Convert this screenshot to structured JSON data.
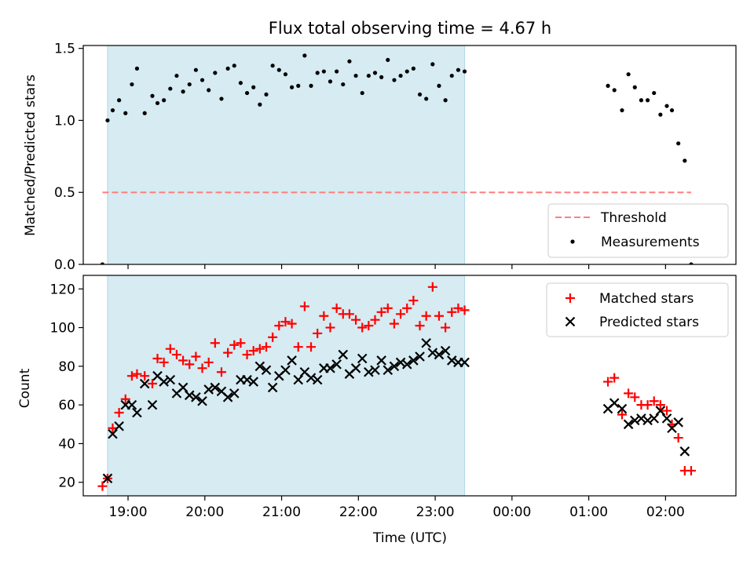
{
  "chart_data": [
    {
      "type": "scatter",
      "title": "Flux total observing time = 4.67 h",
      "xlabel": "",
      "ylabel": "Matched/Predicted stars",
      "xlim": [
        "18:25",
        "02:55"
      ],
      "ylim": [
        0,
        1.52
      ],
      "x_ticks": [
        "19:00",
        "20:00",
        "21:00",
        "22:00",
        "23:00",
        "00:00",
        "01:00",
        "02:00"
      ],
      "y_ticks": [
        "0.0",
        "0.5",
        "1.0",
        "1.5"
      ],
      "shaded_span": {
        "start": "18:44",
        "end": "23:23",
        "color": "#add8e6"
      },
      "threshold": {
        "name": "Threshold",
        "y": 0.5,
        "x_start": "18:40",
        "x_end": "02:20",
        "color": "#ff7f7f"
      },
      "legend_loc": "lower right",
      "series": [
        {
          "name": "Measurements",
          "marker": "dot",
          "color": "#000000",
          "points": [
            {
              "x": "18:40",
              "y": 0.0
            },
            {
              "x": "18:44",
              "y": 1.0
            },
            {
              "x": "18:48",
              "y": 1.07
            },
            {
              "x": "18:53",
              "y": 1.14
            },
            {
              "x": "18:58",
              "y": 1.05
            },
            {
              "x": "19:03",
              "y": 1.25
            },
            {
              "x": "19:07",
              "y": 1.36
            },
            {
              "x": "19:13",
              "y": 1.05
            },
            {
              "x": "19:19",
              "y": 1.17
            },
            {
              "x": "19:23",
              "y": 1.12
            },
            {
              "x": "19:28",
              "y": 1.14
            },
            {
              "x": "19:33",
              "y": 1.22
            },
            {
              "x": "19:38",
              "y": 1.31
            },
            {
              "x": "19:43",
              "y": 1.2
            },
            {
              "x": "19:48",
              "y": 1.25
            },
            {
              "x": "19:53",
              "y": 1.35
            },
            {
              "x": "19:58",
              "y": 1.28
            },
            {
              "x": "20:03",
              "y": 1.21
            },
            {
              "x": "20:08",
              "y": 1.33
            },
            {
              "x": "20:13",
              "y": 1.15
            },
            {
              "x": "20:18",
              "y": 1.36
            },
            {
              "x": "20:23",
              "y": 1.38
            },
            {
              "x": "20:28",
              "y": 1.26
            },
            {
              "x": "20:33",
              "y": 1.19
            },
            {
              "x": "20:38",
              "y": 1.23
            },
            {
              "x": "20:43",
              "y": 1.11
            },
            {
              "x": "20:48",
              "y": 1.18
            },
            {
              "x": "20:53",
              "y": 1.38
            },
            {
              "x": "20:58",
              "y": 1.35
            },
            {
              "x": "21:03",
              "y": 1.32
            },
            {
              "x": "21:08",
              "y": 1.23
            },
            {
              "x": "21:13",
              "y": 1.24
            },
            {
              "x": "21:18",
              "y": 1.45
            },
            {
              "x": "21:23",
              "y": 1.24
            },
            {
              "x": "21:28",
              "y": 1.33
            },
            {
              "x": "21:33",
              "y": 1.34
            },
            {
              "x": "21:38",
              "y": 1.27
            },
            {
              "x": "21:43",
              "y": 1.34
            },
            {
              "x": "21:48",
              "y": 1.25
            },
            {
              "x": "21:53",
              "y": 1.41
            },
            {
              "x": "21:58",
              "y": 1.31
            },
            {
              "x": "22:03",
              "y": 1.19
            },
            {
              "x": "22:08",
              "y": 1.31
            },
            {
              "x": "22:13",
              "y": 1.33
            },
            {
              "x": "22:18",
              "y": 1.3
            },
            {
              "x": "22:23",
              "y": 1.42
            },
            {
              "x": "22:28",
              "y": 1.28
            },
            {
              "x": "22:33",
              "y": 1.31
            },
            {
              "x": "22:38",
              "y": 1.34
            },
            {
              "x": "22:43",
              "y": 1.36
            },
            {
              "x": "22:48",
              "y": 1.18
            },
            {
              "x": "22:53",
              "y": 1.15
            },
            {
              "x": "22:58",
              "y": 1.39
            },
            {
              "x": "23:03",
              "y": 1.24
            },
            {
              "x": "23:08",
              "y": 1.14
            },
            {
              "x": "23:13",
              "y": 1.31
            },
            {
              "x": "23:18",
              "y": 1.35
            },
            {
              "x": "23:23",
              "y": 1.34
            },
            {
              "x": "01:15",
              "y": 1.24
            },
            {
              "x": "01:20",
              "y": 1.21
            },
            {
              "x": "01:26",
              "y": 1.07
            },
            {
              "x": "01:31",
              "y": 1.32
            },
            {
              "x": "01:36",
              "y": 1.23
            },
            {
              "x": "01:41",
              "y": 1.14
            },
            {
              "x": "01:46",
              "y": 1.14
            },
            {
              "x": "01:51",
              "y": 1.19
            },
            {
              "x": "01:56",
              "y": 1.04
            },
            {
              "x": "02:01",
              "y": 1.1
            },
            {
              "x": "02:05",
              "y": 1.07
            },
            {
              "x": "02:10",
              "y": 0.84
            },
            {
              "x": "02:15",
              "y": 0.72
            },
            {
              "x": "02:20",
              "y": 0.0
            }
          ]
        }
      ]
    },
    {
      "type": "scatter",
      "title": "",
      "xlabel": "Time (UTC)",
      "ylabel": "Count",
      "xlim": [
        "18:25",
        "02:55"
      ],
      "ylim": [
        13,
        127
      ],
      "x_ticks": [
        "19:00",
        "20:00",
        "21:00",
        "22:00",
        "23:00",
        "00:00",
        "01:00",
        "02:00"
      ],
      "y_ticks": [
        "20",
        "40",
        "60",
        "80",
        "100",
        "120"
      ],
      "shaded_span": {
        "start": "18:44",
        "end": "23:23",
        "color": "#add8e6"
      },
      "legend_loc": "upper right",
      "series": [
        {
          "name": "Matched stars",
          "marker": "plus",
          "color": "#ff0000",
          "points": [
            {
              "x": "18:40",
              "y": 18
            },
            {
              "x": "18:44",
              "y": 22
            },
            {
              "x": "18:48",
              "y": 48
            },
            {
              "x": "18:53",
              "y": 56
            },
            {
              "x": "18:58",
              "y": 63
            },
            {
              "x": "19:03",
              "y": 75
            },
            {
              "x": "19:07",
              "y": 76
            },
            {
              "x": "19:13",
              "y": 75
            },
            {
              "x": "19:19",
              "y": 71
            },
            {
              "x": "19:23",
              "y": 84
            },
            {
              "x": "19:28",
              "y": 82
            },
            {
              "x": "19:33",
              "y": 89
            },
            {
              "x": "19:38",
              "y": 86
            },
            {
              "x": "19:43",
              "y": 83
            },
            {
              "x": "19:48",
              "y": 81
            },
            {
              "x": "19:53",
              "y": 85
            },
            {
              "x": "19:58",
              "y": 79
            },
            {
              "x": "20:03",
              "y": 82
            },
            {
              "x": "20:08",
              "y": 92
            },
            {
              "x": "20:13",
              "y": 77
            },
            {
              "x": "20:18",
              "y": 87
            },
            {
              "x": "20:23",
              "y": 91
            },
            {
              "x": "20:28",
              "y": 92
            },
            {
              "x": "20:33",
              "y": 86
            },
            {
              "x": "20:38",
              "y": 88
            },
            {
              "x": "20:43",
              "y": 89
            },
            {
              "x": "20:48",
              "y": 90
            },
            {
              "x": "20:53",
              "y": 95
            },
            {
              "x": "20:58",
              "y": 101
            },
            {
              "x": "21:03",
              "y": 103
            },
            {
              "x": "21:08",
              "y": 102
            },
            {
              "x": "21:13",
              "y": 90
            },
            {
              "x": "21:18",
              "y": 111
            },
            {
              "x": "21:23",
              "y": 90
            },
            {
              "x": "21:28",
              "y": 97
            },
            {
              "x": "21:33",
              "y": 106
            },
            {
              "x": "21:38",
              "y": 100
            },
            {
              "x": "21:43",
              "y": 110
            },
            {
              "x": "21:48",
              "y": 107
            },
            {
              "x": "21:53",
              "y": 107
            },
            {
              "x": "21:58",
              "y": 104
            },
            {
              "x": "22:03",
              "y": 100
            },
            {
              "x": "22:08",
              "y": 101
            },
            {
              "x": "22:13",
              "y": 104
            },
            {
              "x": "22:18",
              "y": 108
            },
            {
              "x": "22:23",
              "y": 110
            },
            {
              "x": "22:28",
              "y": 102
            },
            {
              "x": "22:33",
              "y": 107
            },
            {
              "x": "22:38",
              "y": 110
            },
            {
              "x": "22:43",
              "y": 114
            },
            {
              "x": "22:48",
              "y": 101
            },
            {
              "x": "22:53",
              "y": 106
            },
            {
              "x": "22:58",
              "y": 121
            },
            {
              "x": "23:03",
              "y": 106
            },
            {
              "x": "23:08",
              "y": 100
            },
            {
              "x": "23:13",
              "y": 108
            },
            {
              "x": "23:18",
              "y": 110
            },
            {
              "x": "23:23",
              "y": 109
            },
            {
              "x": "01:15",
              "y": 72
            },
            {
              "x": "01:20",
              "y": 74
            },
            {
              "x": "01:26",
              "y": 55
            },
            {
              "x": "01:31",
              "y": 66
            },
            {
              "x": "01:36",
              "y": 64
            },
            {
              "x": "01:41",
              "y": 60
            },
            {
              "x": "01:46",
              "y": 60
            },
            {
              "x": "01:51",
              "y": 62
            },
            {
              "x": "01:56",
              "y": 60
            },
            {
              "x": "02:01",
              "y": 57
            },
            {
              "x": "02:05",
              "y": 50
            },
            {
              "x": "02:10",
              "y": 43
            },
            {
              "x": "02:15",
              "y": 26
            },
            {
              "x": "02:20",
              "y": 26
            }
          ]
        },
        {
          "name": "Predicted stars",
          "marker": "x",
          "color": "#000000",
          "points": [
            {
              "x": "18:44",
              "y": 22
            },
            {
              "x": "18:48",
              "y": 45
            },
            {
              "x": "18:53",
              "y": 49
            },
            {
              "x": "18:58",
              "y": 60
            },
            {
              "x": "19:03",
              "y": 60
            },
            {
              "x": "19:07",
              "y": 56
            },
            {
              "x": "19:13",
              "y": 71
            },
            {
              "x": "19:19",
              "y": 60
            },
            {
              "x": "19:23",
              "y": 75
            },
            {
              "x": "19:28",
              "y": 72
            },
            {
              "x": "19:33",
              "y": 73
            },
            {
              "x": "19:38",
              "y": 66
            },
            {
              "x": "19:43",
              "y": 69
            },
            {
              "x": "19:48",
              "y": 65
            },
            {
              "x": "19:53",
              "y": 64
            },
            {
              "x": "19:58",
              "y": 62
            },
            {
              "x": "20:03",
              "y": 68
            },
            {
              "x": "20:08",
              "y": 69
            },
            {
              "x": "20:13",
              "y": 67
            },
            {
              "x": "20:18",
              "y": 64
            },
            {
              "x": "20:23",
              "y": 66
            },
            {
              "x": "20:28",
              "y": 73
            },
            {
              "x": "20:33",
              "y": 73
            },
            {
              "x": "20:38",
              "y": 72
            },
            {
              "x": "20:43",
              "y": 80
            },
            {
              "x": "20:48",
              "y": 78
            },
            {
              "x": "20:53",
              "y": 69
            },
            {
              "x": "20:58",
              "y": 75
            },
            {
              "x": "21:03",
              "y": 78
            },
            {
              "x": "21:08",
              "y": 83
            },
            {
              "x": "21:13",
              "y": 73
            },
            {
              "x": "21:18",
              "y": 77
            },
            {
              "x": "21:23",
              "y": 74
            },
            {
              "x": "21:28",
              "y": 73
            },
            {
              "x": "21:33",
              "y": 79
            },
            {
              "x": "21:38",
              "y": 79
            },
            {
              "x": "21:43",
              "y": 81
            },
            {
              "x": "21:48",
              "y": 86
            },
            {
              "x": "21:53",
              "y": 76
            },
            {
              "x": "21:58",
              "y": 79
            },
            {
              "x": "22:03",
              "y": 84
            },
            {
              "x": "22:08",
              "y": 77
            },
            {
              "x": "22:13",
              "y": 78
            },
            {
              "x": "22:18",
              "y": 83
            },
            {
              "x": "22:23",
              "y": 78
            },
            {
              "x": "22:28",
              "y": 80
            },
            {
              "x": "22:33",
              "y": 82
            },
            {
              "x": "22:38",
              "y": 81
            },
            {
              "x": "22:43",
              "y": 83
            },
            {
              "x": "22:48",
              "y": 85
            },
            {
              "x": "22:53",
              "y": 92
            },
            {
              "x": "22:58",
              "y": 87
            },
            {
              "x": "23:03",
              "y": 86
            },
            {
              "x": "23:08",
              "y": 88
            },
            {
              "x": "23:13",
              "y": 83
            },
            {
              "x": "23:18",
              "y": 82
            },
            {
              "x": "23:23",
              "y": 82
            },
            {
              "x": "01:15",
              "y": 58
            },
            {
              "x": "01:20",
              "y": 61
            },
            {
              "x": "01:26",
              "y": 58
            },
            {
              "x": "01:31",
              "y": 50
            },
            {
              "x": "01:36",
              "y": 52
            },
            {
              "x": "01:41",
              "y": 53
            },
            {
              "x": "01:46",
              "y": 52
            },
            {
              "x": "01:51",
              "y": 53
            },
            {
              "x": "01:56",
              "y": 57
            },
            {
              "x": "02:01",
              "y": 53
            },
            {
              "x": "02:05",
              "y": 48
            },
            {
              "x": "02:10",
              "y": 51
            },
            {
              "x": "02:15",
              "y": 36
            }
          ]
        }
      ]
    }
  ]
}
